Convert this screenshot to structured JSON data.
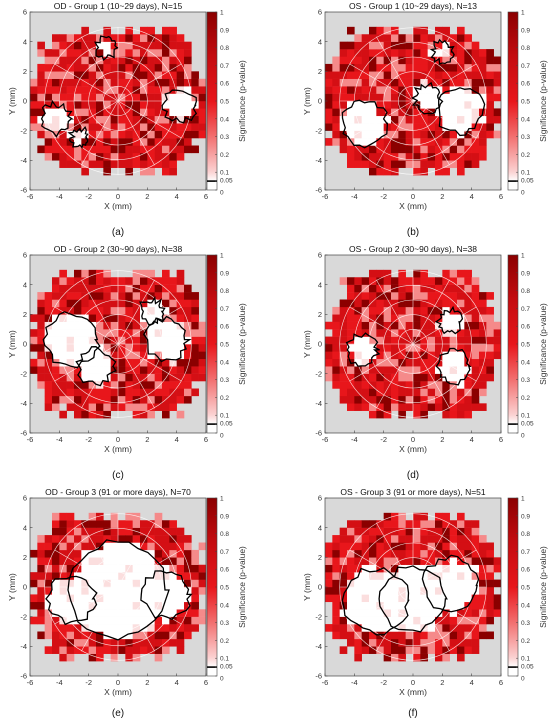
{
  "figure": {
    "colorbar": {
      "label": "Significance (p-value)",
      "ticks": [
        "1",
        "0.9",
        "0.8",
        "0.7",
        "0.6",
        "0.5",
        "0.4",
        "0.3",
        "0.2",
        "0.1",
        "0.05",
        "0"
      ],
      "threshold": 0.05,
      "colors": {
        "high": "#8b0000",
        "mid": "#e8161b",
        "low": "#ffffff",
        "background": "#d9d9d9",
        "contour": "#000000"
      }
    },
    "axis": {
      "xlabel": "X (mm)",
      "ylabel": "Y (mm)",
      "xticks": [
        "-6",
        "-4",
        "-2",
        "0",
        "2",
        "4",
        "6"
      ],
      "yticks": [
        "6",
        "4",
        "2",
        "0",
        "-2",
        "-4",
        "-6"
      ]
    }
  },
  "chart_data": [
    {
      "type": "heatmap",
      "title": "OD - Group 1 (10~29 days), N=15",
      "caption": "(a)",
      "xlabel": "X (mm)",
      "ylabel": "Y (mm)",
      "xlim": [
        -6,
        6
      ],
      "ylim": [
        -6,
        6
      ],
      "colorbar_range": [
        0,
        1
      ],
      "non_significant_regions": [
        {
          "x": 4.2,
          "y": -0.3,
          "r": 1.1
        },
        {
          "x": -4.2,
          "y": -1.2,
          "r": 1.0
        },
        {
          "x": -0.8,
          "y": 3.6,
          "r": 0.7
        },
        {
          "x": -2.6,
          "y": -2.5,
          "r": 0.6
        }
      ]
    },
    {
      "type": "heatmap",
      "title": "OS - Group 1 (10~29 days), N=13",
      "caption": "(b)",
      "xlabel": "X (mm)",
      "ylabel": "Y (mm)",
      "xlim": [
        -6,
        6
      ],
      "ylim": [
        -6,
        6
      ],
      "colorbar_range": [
        0,
        1
      ],
      "non_significant_regions": [
        {
          "x": -3.3,
          "y": -1.5,
          "r": 1.5
        },
        {
          "x": 3.2,
          "y": -0.6,
          "r": 1.6
        },
        {
          "x": 1.0,
          "y": 0.2,
          "r": 0.9
        },
        {
          "x": 2.0,
          "y": 3.3,
          "r": 0.7
        }
      ]
    },
    {
      "type": "heatmap",
      "title": "OD - Group 2 (30~90 days), N=38",
      "caption": "(c)",
      "xlabel": "X (mm)",
      "ylabel": "Y (mm)",
      "xlim": [
        -6,
        6
      ],
      "ylim": [
        -6,
        6
      ],
      "colorbar_range": [
        0,
        1
      ],
      "non_significant_regions": [
        {
          "x": -3.2,
          "y": 0.3,
          "r": 1.8
        },
        {
          "x": -1.5,
          "y": -1.5,
          "r": 1.2
        },
        {
          "x": 3.3,
          "y": 0.3,
          "r": 1.4
        },
        {
          "x": 2.3,
          "y": 2.2,
          "r": 0.8
        }
      ]
    },
    {
      "type": "heatmap",
      "title": "OS - Group 2 (30~90 days), N=38",
      "caption": "(d)",
      "xlabel": "X (mm)",
      "ylabel": "Y (mm)",
      "xlim": [
        -6,
        6
      ],
      "ylim": [
        -6,
        6
      ],
      "colorbar_range": [
        0,
        1
      ],
      "non_significant_regions": [
        {
          "x": -3.5,
          "y": -0.4,
          "r": 1.0
        },
        {
          "x": 2.8,
          "y": -1.5,
          "r": 1.1
        },
        {
          "x": 2.5,
          "y": 1.5,
          "r": 0.8
        }
      ]
    },
    {
      "type": "heatmap",
      "title": "OD - Group 3 (91 or more days), N=70",
      "caption": "(e)",
      "xlabel": "X (mm)",
      "ylabel": "Y (mm)",
      "xlim": [
        -6,
        6
      ],
      "ylim": [
        -6,
        6
      ],
      "colorbar_range": [
        0,
        1
      ],
      "non_significant_regions": [
        {
          "x": 0.0,
          "y": -0.2,
          "r": 3.3
        },
        {
          "x": -3.2,
          "y": -0.8,
          "r": 1.6
        },
        {
          "x": 3.3,
          "y": -0.5,
          "r": 1.6
        }
      ]
    },
    {
      "type": "heatmap",
      "title": "OS - Group 3 (91 or more days), N=51",
      "caption": "(f)",
      "xlabel": "X (mm)",
      "ylabel": "Y (mm)",
      "xlim": [
        -6,
        6
      ],
      "ylim": [
        -6,
        6
      ],
      "colorbar_range": [
        0,
        1
      ],
      "non_significant_regions": [
        {
          "x": -2.5,
          "y": -0.9,
          "r": 2.2
        },
        {
          "x": 2.6,
          "y": 0.1,
          "r": 1.9
        },
        {
          "x": 0.0,
          "y": -0.8,
          "r": 2.2
        }
      ]
    }
  ]
}
